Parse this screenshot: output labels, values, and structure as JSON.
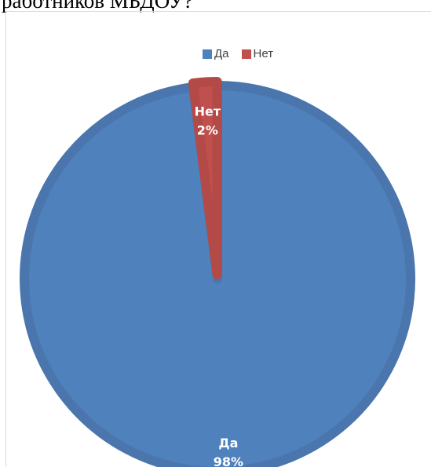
{
  "header_text": "работников МБДОУ?",
  "colors": {
    "Да": "#4f81bd",
    "Нет": "#c0504d",
    "Да_border": "#4a76ad",
    "Нет_border": "#b44a47"
  },
  "legend": [
    {
      "label": "Да",
      "color": "#4f81bd"
    },
    {
      "label": "Нет",
      "color": "#c0504d"
    }
  ],
  "chart_data": {
    "type": "pie",
    "title": "",
    "slices": [
      {
        "label": "Да",
        "value": 98,
        "display": "98%"
      },
      {
        "label": "Нет",
        "value": 2,
        "display": "2%"
      }
    ],
    "legend_position": "top",
    "start_angle_deg": 0,
    "direction": "clockwise"
  }
}
